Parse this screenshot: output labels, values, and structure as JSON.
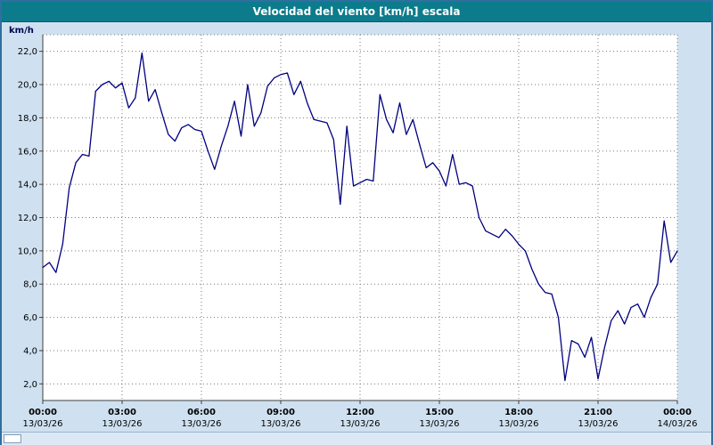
{
  "window": {
    "title": "Velocidad del viento [km/h] escala"
  },
  "colors": {
    "titlebar_bg": "#0c7b8c",
    "frame": "#2f6f9f",
    "panel_bg": "#cfe1f1",
    "plot_bg": "#ffffff",
    "grid": "#7a7a7a",
    "axis": "#404040",
    "line": "#000080",
    "text": "#000000",
    "ylabel_color": "#00004d"
  },
  "chart_data": {
    "type": "line",
    "title": "Velocidad del viento [km/h] escala",
    "xlabel": "",
    "ylabel": "km/h",
    "ylim": [
      1,
      23
    ],
    "x_range": [
      0,
      24
    ],
    "grid": "dotted",
    "legend": "none",
    "y_ticks": [
      {
        "value": 22,
        "label": "22,0"
      },
      {
        "value": 20,
        "label": "20,0"
      },
      {
        "value": 18,
        "label": "18,0"
      },
      {
        "value": 16,
        "label": "16,0"
      },
      {
        "value": 14,
        "label": "14,0"
      },
      {
        "value": 12,
        "label": "12,0"
      },
      {
        "value": 10,
        "label": "10,0"
      },
      {
        "value": 8,
        "label": "8,0"
      },
      {
        "value": 6,
        "label": "6,0"
      },
      {
        "value": 4,
        "label": "4,0"
      },
      {
        "value": 2,
        "label": "2,0"
      }
    ],
    "x_ticks": [
      {
        "hour": 0,
        "time": "00:00",
        "date": "13/03/26"
      },
      {
        "hour": 3,
        "time": "03:00",
        "date": "13/03/26"
      },
      {
        "hour": 6,
        "time": "06:00",
        "date": "13/03/26"
      },
      {
        "hour": 9,
        "time": "09:00",
        "date": "13/03/26"
      },
      {
        "hour": 12,
        "time": "12:00",
        "date": "13/03/26"
      },
      {
        "hour": 15,
        "time": "15:00",
        "date": "13/03/26"
      },
      {
        "hour": 18,
        "time": "18:00",
        "date": "13/03/26"
      },
      {
        "hour": 21,
        "time": "21:00",
        "date": "13/03/26"
      },
      {
        "hour": 24,
        "time": "00:00",
        "date": "14/03/26"
      }
    ],
    "series": [
      {
        "name": "Velocidad del viento [km/h]",
        "color": "#000080",
        "start_hour": 0,
        "step_hours": 0.25,
        "values": [
          9.0,
          9.3,
          8.7,
          10.4,
          13.8,
          15.3,
          15.8,
          15.7,
          19.6,
          20.0,
          20.2,
          19.8,
          20.1,
          18.6,
          19.2,
          21.9,
          19.0,
          19.7,
          18.3,
          17.0,
          16.6,
          17.4,
          17.6,
          17.3,
          17.2,
          16.0,
          14.9,
          16.3,
          17.5,
          19.0,
          16.9,
          20.0,
          17.5,
          18.3,
          19.9,
          20.4,
          20.6,
          20.7,
          19.4,
          20.2,
          18.9,
          17.9,
          17.8,
          17.7,
          16.7,
          12.8,
          17.5,
          13.9,
          14.1,
          14.3,
          14.2,
          19.4,
          17.9,
          17.1,
          18.9,
          17.0,
          17.9,
          16.4,
          15.0,
          15.3,
          14.8,
          13.9,
          15.8,
          14.0,
          14.1,
          13.9,
          12.0,
          11.2,
          11.0,
          10.8,
          11.3,
          10.9,
          10.4,
          10.0,
          8.9,
          8.0,
          7.5,
          7.4,
          6.0,
          2.2,
          4.6,
          4.4,
          3.6,
          4.8,
          2.3,
          4.2,
          5.8,
          6.4,
          5.6,
          6.6,
          6.8,
          6.0,
          7.2,
          8.0,
          11.8,
          9.3,
          10.0
        ]
      }
    ]
  },
  "scrollbar": {
    "purpose": "time-scale"
  }
}
